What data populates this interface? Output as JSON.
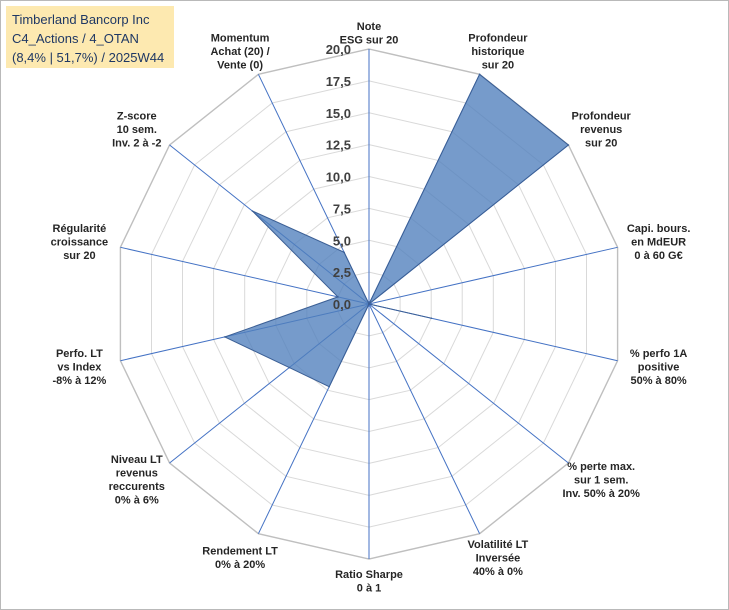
{
  "header": {
    "line1": "Timberland Bancorp Inc",
    "line2": "C4_Actions / 4_OTAN",
    "line3": "(8,4% | 51,7%) / 2025W44"
  },
  "chart_data": {
    "type": "radar",
    "rmin": 0,
    "rmax": 20,
    "ticks": [
      "0,0",
      "2,5",
      "5,0",
      "7,5",
      "10,0",
      "12,5",
      "15,0",
      "17,5",
      "20,0"
    ],
    "tick_values": [
      0,
      2.5,
      5,
      7.5,
      10,
      12.5,
      15,
      17.5,
      20
    ],
    "grid": true,
    "colors": {
      "fill": "#4f7fbc",
      "fill_opacity": 0.78,
      "stroke": "#3b5f95",
      "axis": "#4472c4",
      "grid": "#d9d9d9"
    },
    "axes": [
      {
        "label": [
          "Note",
          "ESG sur 20"
        ],
        "value": 0
      },
      {
        "label": [
          "Profondeur",
          "historique",
          "sur 20"
        ],
        "value": 20
      },
      {
        "label": [
          "Profondeur",
          "revenus",
          "sur 20"
        ],
        "value": 20
      },
      {
        "label": [
          "Capi. bours.",
          "en MdEUR",
          "0 à 60 G€"
        ],
        "value": 0
      },
      {
        "label": [
          "% perfo 1A",
          "positive",
          "50% à 80%"
        ],
        "value": 5
      },
      {
        "label": [
          "% perte max.",
          "sur 1 sem.",
          "Inv. 50% à 20%"
        ],
        "value": 0
      },
      {
        "label": [
          "Volatilité LT",
          "Inversée",
          "40% à 0%"
        ],
        "value": 0
      },
      {
        "label": [
          "Ratio Sharpe",
          "0 à 1"
        ],
        "value": 0
      },
      {
        "label": [
          "Rendement LT",
          "0% à 20%"
        ],
        "value": 7.2
      },
      {
        "label": [
          "Niveau LT",
          "revenus",
          "reccurents",
          "0% à 6%"
        ],
        "value": 8
      },
      {
        "label": [
          "Perfo. LT",
          "vs Index",
          "-8% à 12%"
        ],
        "value": 11.6
      },
      {
        "label": [
          "Régularité",
          "croissance",
          "sur 20"
        ],
        "value": 2.5
      },
      {
        "label": [
          "Z-score",
          "10 sem.",
          "Inv. 2 à -2"
        ],
        "value": 11.7
      },
      {
        "label": [
          "Momentum",
          "Achat (20) /",
          "Vente (0)"
        ],
        "value": 4.5
      }
    ]
  }
}
